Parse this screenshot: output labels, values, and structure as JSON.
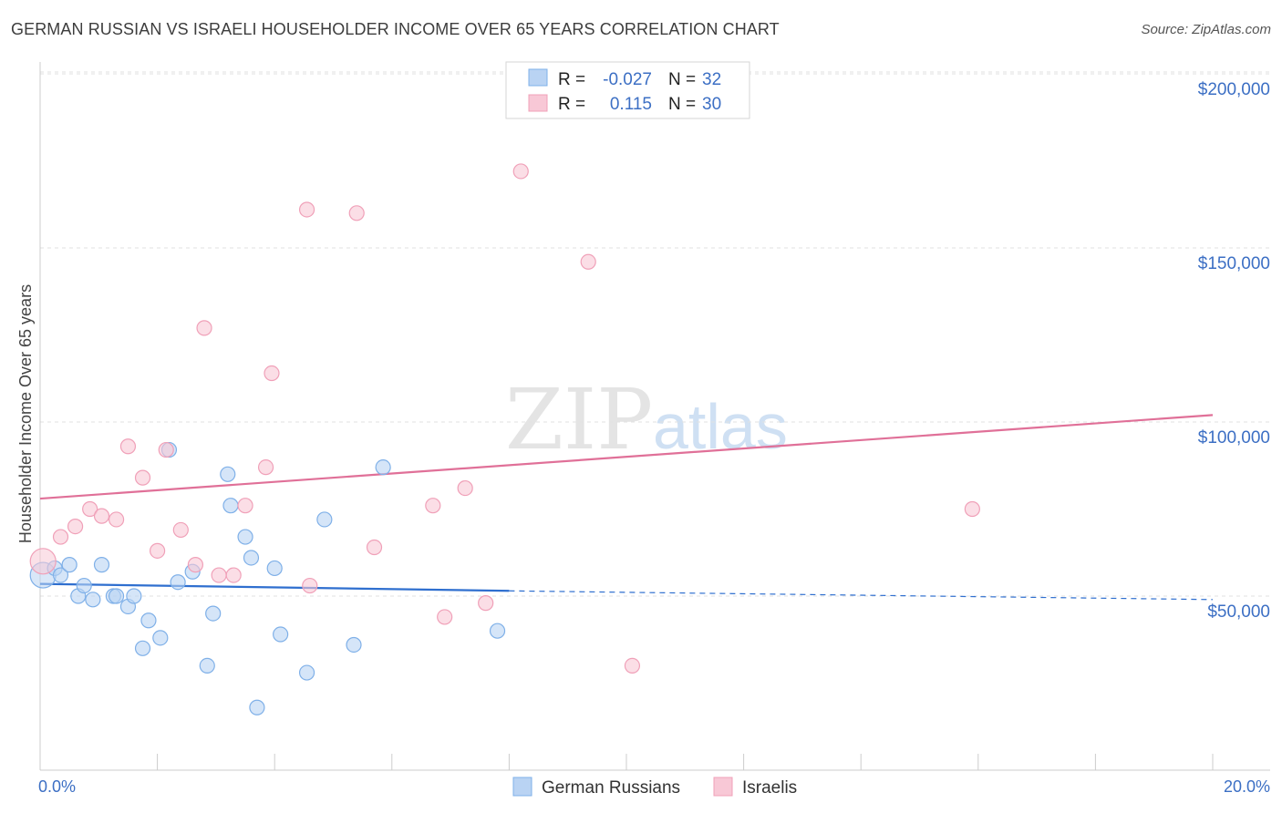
{
  "chart_data": {
    "type": "scatter",
    "title": "GERMAN RUSSIAN VS ISRAELI HOUSEHOLDER INCOME OVER 65 YEARS CORRELATION CHART",
    "source": "Source: ZipAtlas.com",
    "xlabel": "",
    "ylabel": "Householder Income Over 65 years",
    "xlim": [
      0,
      20
    ],
    "ylim": [
      0,
      210000
    ],
    "x_tick_labels": [
      "0.0%",
      "20.0%"
    ],
    "y_ticks": [
      50000,
      100000,
      150000,
      200000
    ],
    "y_tick_labels": [
      "$50,000",
      "$100,000",
      "$150,000",
      "$200,000"
    ],
    "grid": true,
    "watermark": {
      "zip": "ZIP",
      "atlas": "atlas"
    },
    "legend_stats": {
      "r_label": "R =",
      "n_label": "N =",
      "rows": [
        {
          "r": "-0.027",
          "n": "32"
        },
        {
          "r": "0.115",
          "n": "30"
        }
      ]
    },
    "series": [
      {
        "name": "German Russians",
        "color": "#7fb0e8",
        "fill": "#b9d3f3",
        "line_color": "#2f6fcf",
        "trend": {
          "x0": 0,
          "y0": 53500,
          "x1": 8,
          "y1": 51500,
          "dash_to_x": 20,
          "dash_to_y": 49000
        },
        "points": [
          [
            0.05,
            56000
          ],
          [
            0.25,
            58000
          ],
          [
            0.35,
            56000
          ],
          [
            0.5,
            59000
          ],
          [
            0.65,
            50000
          ],
          [
            0.75,
            53000
          ],
          [
            0.9,
            49000
          ],
          [
            1.05,
            59000
          ],
          [
            1.25,
            50000
          ],
          [
            1.3,
            50000
          ],
          [
            1.5,
            47000
          ],
          [
            1.6,
            50000
          ],
          [
            1.75,
            35000
          ],
          [
            1.85,
            43000
          ],
          [
            2.05,
            38000
          ],
          [
            2.2,
            92000
          ],
          [
            2.35,
            54000
          ],
          [
            2.6,
            57000
          ],
          [
            2.85,
            30000
          ],
          [
            2.95,
            45000
          ],
          [
            3.2,
            85000
          ],
          [
            3.25,
            76000
          ],
          [
            3.5,
            67000
          ],
          [
            3.6,
            61000
          ],
          [
            3.7,
            18000
          ],
          [
            4.0,
            58000
          ],
          [
            4.1,
            39000
          ],
          [
            4.55,
            28000
          ],
          [
            4.85,
            72000
          ],
          [
            5.35,
            36000
          ],
          [
            5.85,
            87000
          ],
          [
            7.8,
            40000
          ]
        ]
      },
      {
        "name": "Israelis",
        "color": "#f0a0b8",
        "fill": "#f8c8d6",
        "line_color": "#e07098",
        "trend": {
          "x0": 0,
          "y0": 78000,
          "x1": 20,
          "y1": 102000
        },
        "points": [
          [
            0.05,
            60000
          ],
          [
            0.35,
            67000
          ],
          [
            0.6,
            70000
          ],
          [
            0.85,
            75000
          ],
          [
            1.05,
            73000
          ],
          [
            1.3,
            72000
          ],
          [
            1.5,
            93000
          ],
          [
            1.75,
            84000
          ],
          [
            2.0,
            63000
          ],
          [
            2.15,
            92000
          ],
          [
            2.4,
            69000
          ],
          [
            2.65,
            59000
          ],
          [
            2.8,
            127000
          ],
          [
            3.05,
            56000
          ],
          [
            3.3,
            56000
          ],
          [
            3.5,
            76000
          ],
          [
            3.85,
            87000
          ],
          [
            3.95,
            114000
          ],
          [
            4.55,
            161000
          ],
          [
            4.6,
            53000
          ],
          [
            5.4,
            160000
          ],
          [
            5.7,
            64000
          ],
          [
            6.7,
            76000
          ],
          [
            6.9,
            44000
          ],
          [
            7.25,
            81000
          ],
          [
            7.6,
            48000
          ],
          [
            8.2,
            172000
          ],
          [
            9.35,
            146000
          ],
          [
            10.1,
            30000
          ],
          [
            15.9,
            75000
          ]
        ]
      }
    ]
  }
}
